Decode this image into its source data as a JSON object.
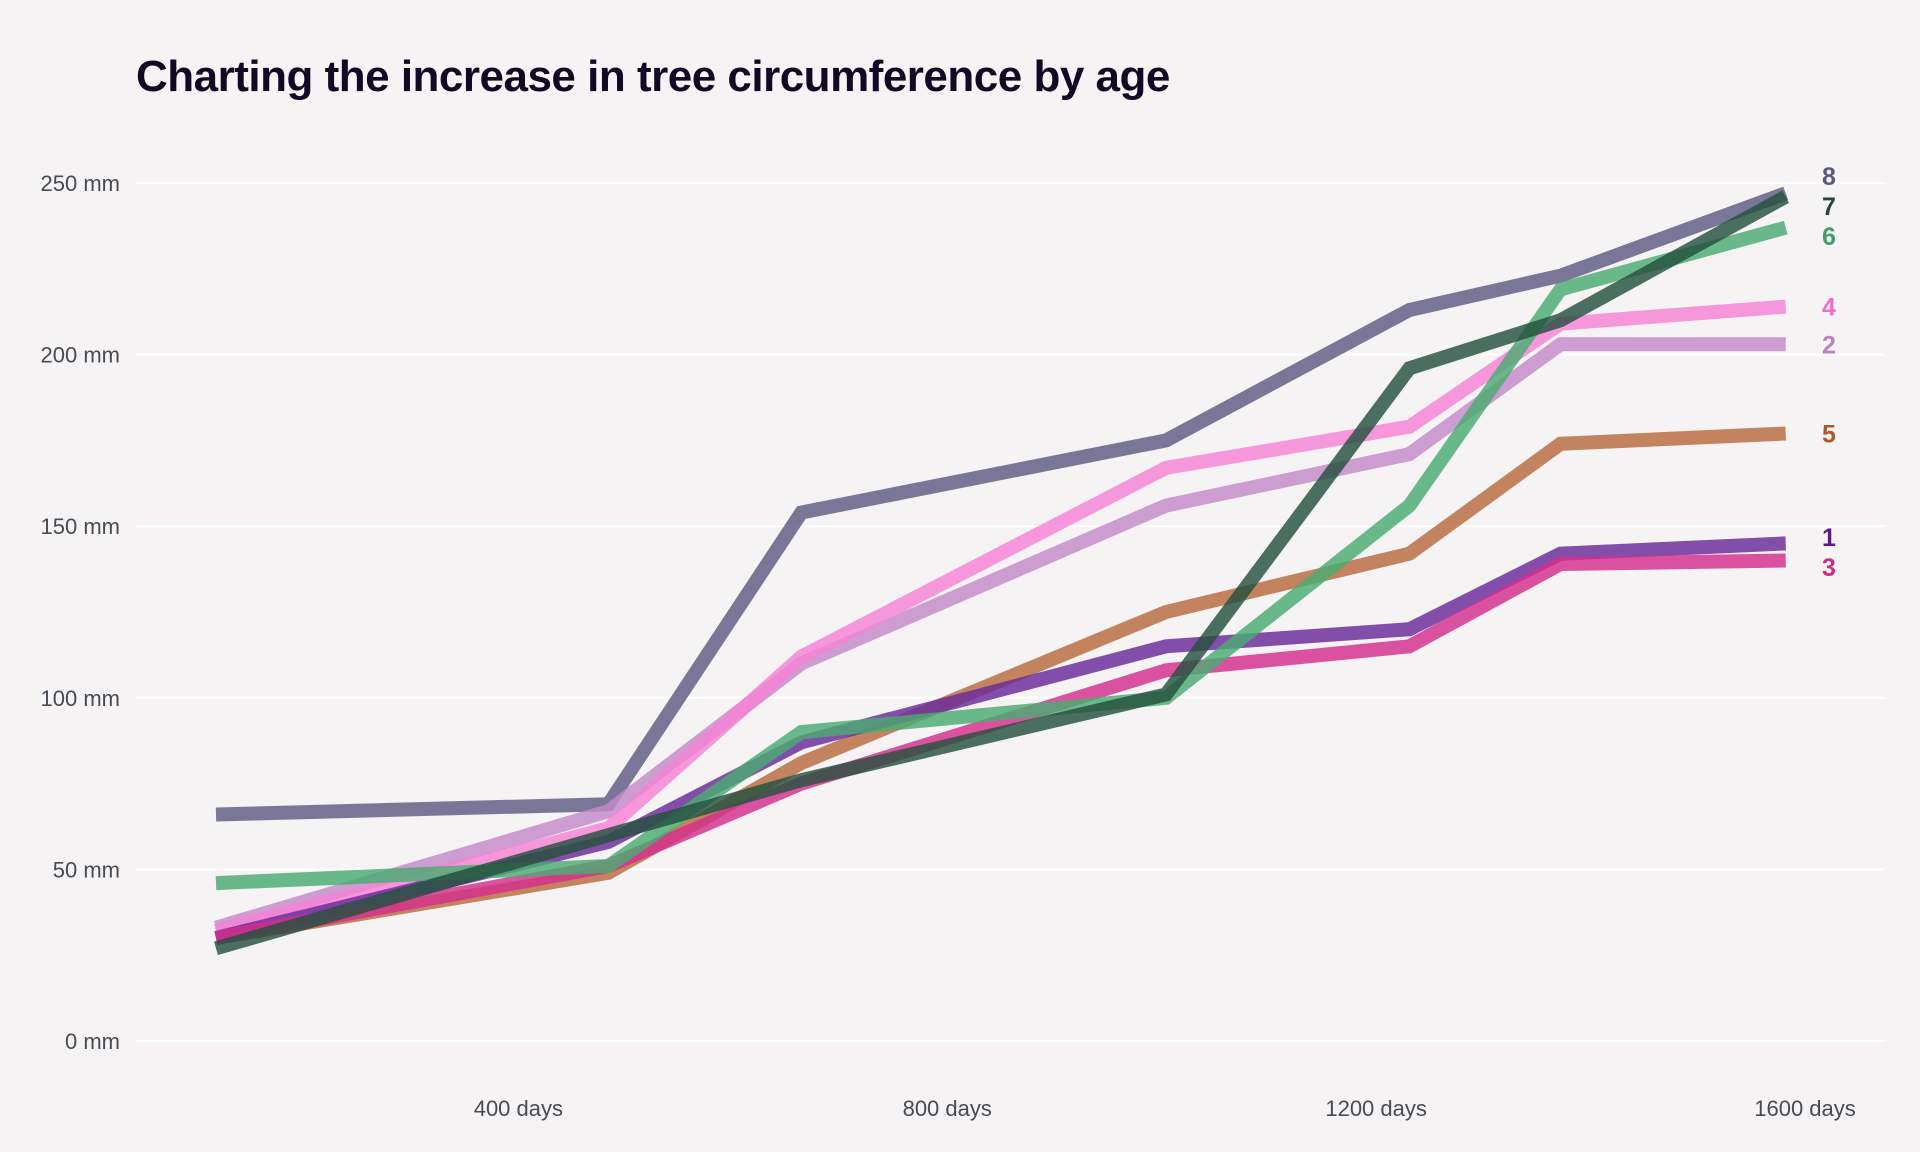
{
  "chart_data": {
    "type": "line",
    "title": "Charting the increase in tree circumference by age",
    "xlabel": "",
    "ylabel": "",
    "xlim": [
      118,
      1600
    ],
    "ylim": [
      0,
      250
    ],
    "grid": true,
    "legend": "direct labels at line ends (right)",
    "x": [
      118,
      484,
      664,
      1004,
      1231,
      1372,
      1582
    ],
    "x_ticks": [
      {
        "value": 400,
        "label": "400 days"
      },
      {
        "value": 800,
        "label": "800 days"
      },
      {
        "value": 1200,
        "label": "1200 days"
      },
      {
        "value": 1600,
        "label": "1600 days"
      }
    ],
    "y_ticks": [
      {
        "value": 0,
        "label": "0 mm"
      },
      {
        "value": 50,
        "label": "50 mm"
      },
      {
        "value": 100,
        "label": "100 mm"
      },
      {
        "value": 150,
        "label": "150 mm"
      },
      {
        "value": 200,
        "label": "200 mm"
      },
      {
        "value": 250,
        "label": "250 mm"
      }
    ],
    "series": [
      {
        "name": "8",
        "color": "#5e5a82",
        "values": [
          66,
          69,
          154,
          175,
          213,
          223,
          247
        ]
      },
      {
        "name": "2",
        "color": "#c589c8",
        "values": [
          33,
          67,
          110,
          156,
          171,
          203,
          203
        ]
      },
      {
        "name": "4",
        "color": "#f783d6",
        "values": [
          32,
          62,
          112,
          167,
          179,
          209,
          214
        ]
      },
      {
        "name": "5",
        "color": "#b86a3e",
        "values": [
          30,
          49,
          81,
          125,
          142,
          174,
          177
        ]
      },
      {
        "name": "1",
        "color": "#6a2a9a",
        "values": [
          30,
          58,
          87,
          115,
          120,
          142,
          145
        ]
      },
      {
        "name": "3",
        "color": "#d42e8c",
        "values": [
          30,
          51,
          75,
          108,
          115,
          139,
          140
        ]
      },
      {
        "name": "6",
        "color": "#4aab72",
        "values": [
          46,
          51,
          90,
          100,
          156,
          219,
          237
        ]
      },
      {
        "name": "7",
        "color": "#24503e",
        "values": [
          27,
          60,
          76,
          101,
          196,
          210,
          246
        ]
      }
    ],
    "label_colors": {
      "1": "#5c1a8c",
      "2": "#c07fc4",
      "3": "#cf2a80",
      "4": "#f06ccd",
      "5": "#a95a2a",
      "6": "#3f9f67",
      "7": "#1e4a36",
      "8": "#5a587c"
    }
  }
}
